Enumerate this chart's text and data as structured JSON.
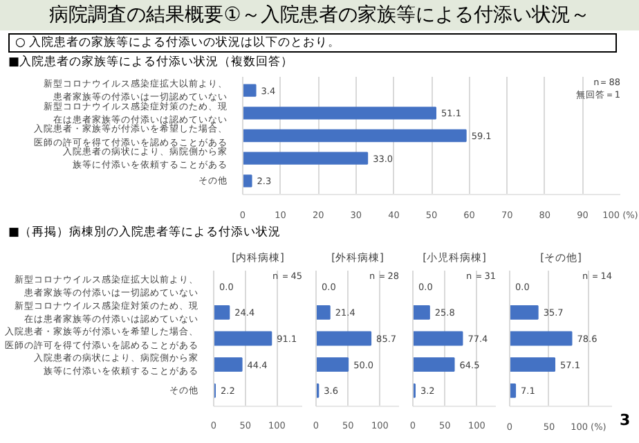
{
  "chart_data": [
    {
      "type": "bar",
      "orientation": "horizontal",
      "title": "病院調査の結果概要①～入院患者の家族等による付添い状況～",
      "subtitle": "○ 入院患者の家族等による付添いの状況は以下のとおり。",
      "annotations": [
        "■入院患者の家族等による付添い状況（複数回答）",
        "n＝88",
        "無回答＝1"
      ],
      "categories": [
        "新型コロナウイルス感染症拡大以前より、患者家族等の付添いは一切認めていない",
        "新型コロナウイルス感染症対策のため、現在は患者家族等の付添いは認めていない",
        "入院患者・家族等が付添いを希望した場合、医師の許可を得て付添いを認めることがある",
        "入院患者の病状により、病院側から家族等に付添いを依頼することがある",
        "その他"
      ],
      "values": [
        3.4,
        51.1,
        59.1,
        33.0,
        2.3
      ],
      "value_labels": [
        "3.4",
        "51.1",
        "59.1",
        "33.0",
        "2.3"
      ],
      "color": "#4472c4",
      "xlim": [
        0,
        100
      ],
      "xticks": [
        0,
        10,
        20,
        30,
        40,
        50,
        60,
        70,
        80,
        90,
        {
          "value": 100,
          "label": "100 (%)"
        }
      ],
      "grid": "x"
    },
    {
      "type": "bar",
      "orientation": "horizontal",
      "title": "[内科病棟]",
      "annotations": [
        "■（再掲）病棟別の入院患者等による付添い状況",
        "n ＝45"
      ],
      "categories": [
        "新型コロナウイルス感染症拡大以前より、患者家族等の付添いは一切認めていない",
        "新型コロナウイルス感染症対策のため、現在は患者家族等の付添いは認めていない",
        "入院患者・家族等が付添いを希望した場合、医師の許可を得て付添いを認めることがある",
        "入院患者の病状により、病院側から家族等に付添いを依頼することがある",
        "その他"
      ],
      "values": [
        0.0,
        24.4,
        91.1,
        44.4,
        2.2
      ],
      "value_labels": [
        "0.0",
        "24.4",
        "91.1",
        "44.4",
        "2.2"
      ],
      "color": "#4472c4",
      "xlim": [
        0,
        140
      ],
      "xticks": [
        0,
        50,
        100
      ],
      "grid": "x"
    },
    {
      "type": "bar",
      "orientation": "horizontal",
      "title": "[外科病棟]",
      "annotations": [
        "n ＝28"
      ],
      "categories": [
        null,
        null,
        null,
        null,
        null
      ],
      "tick_labels": "x",
      "values": [
        0.0,
        21.4,
        85.7,
        50.0,
        3.6
      ],
      "value_labels": [
        "0.0",
        "21.4",
        "85.7",
        "50.0",
        "3.6"
      ],
      "color": "#4472c4",
      "xlim": [
        0,
        130
      ],
      "xticks": [
        0,
        50,
        100
      ],
      "grid": "x"
    },
    {
      "type": "bar",
      "orientation": "horizontal",
      "title": "[小児科病棟]",
      "annotations": [
        "n ＝31"
      ],
      "categories": [
        null,
        null,
        null,
        null,
        null
      ],
      "tick_labels": "x",
      "values": [
        0.0,
        25.8,
        77.4,
        64.5,
        3.2
      ],
      "value_labels": [
        "0.0",
        "25.8",
        "77.4",
        "64.5",
        "3.2"
      ],
      "color": "#4472c4",
      "xlim": [
        0,
        130
      ],
      "xticks": [
        0,
        50,
        100
      ],
      "grid": "x"
    },
    {
      "type": "bar",
      "orientation": "horizontal",
      "title": "[その他]",
      "annotations": [
        "n ＝14",
        "3"
      ],
      "categories": [
        null,
        null,
        null,
        null,
        null
      ],
      "tick_labels": "x",
      "values": [
        0.0,
        35.7,
        78.6,
        57.1,
        7.1
      ],
      "value_labels": [
        "0.0",
        "35.7",
        "78.6",
        "57.1",
        "7.1"
      ],
      "color": "#4472c4",
      "xlim": [
        0,
        130
      ],
      "xticks": [
        0,
        50,
        {
          "value": 100,
          "label": "100 (%)"
        }
      ],
      "grid": "x"
    }
  ]
}
